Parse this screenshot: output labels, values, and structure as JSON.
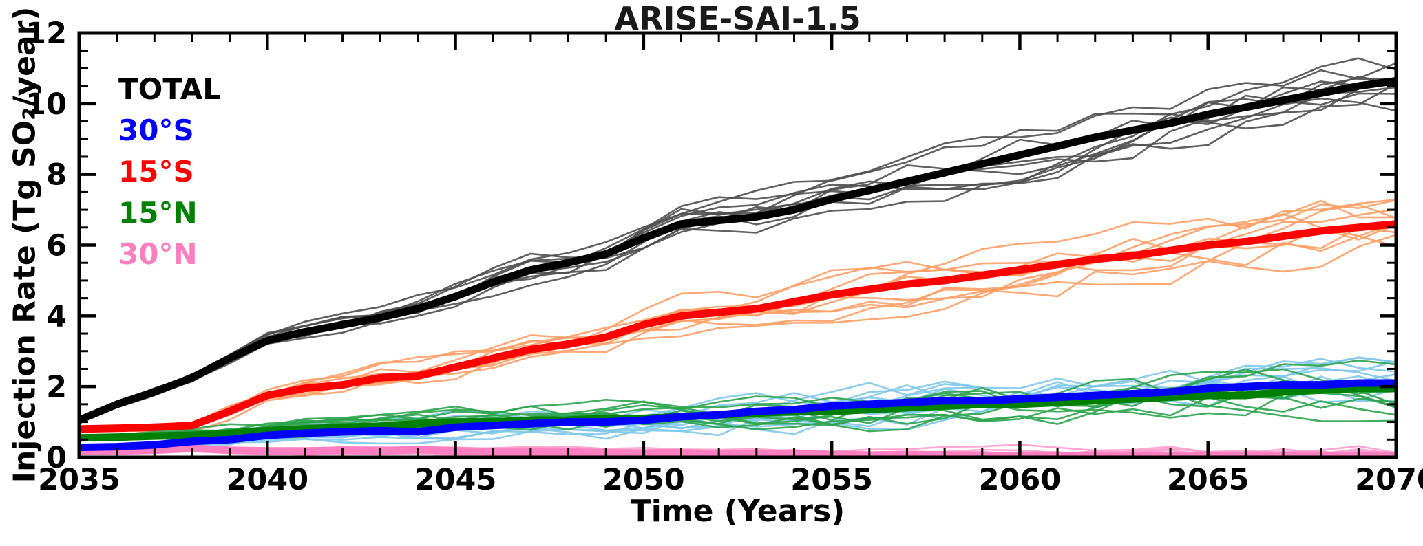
{
  "chart_data": {
    "type": "line",
    "title": "ARISE-SAI-1.5",
    "xlabel": "Time (Years)",
    "ylabel": "Injection Rate (Tg SO₂/year)",
    "xlim": [
      2035,
      2070
    ],
    "ylim": [
      0,
      12
    ],
    "x_ticks": [
      2035,
      2040,
      2045,
      2050,
      2055,
      2060,
      2065,
      2070
    ],
    "y_ticks": [
      0,
      2,
      4,
      6,
      8,
      10,
      12
    ],
    "grid": false,
    "legend_position": "upper-left-inside",
    "x": [
      2035,
      2036,
      2037,
      2038,
      2039,
      2040,
      2041,
      2042,
      2043,
      2044,
      2045,
      2046,
      2047,
      2048,
      2049,
      2050,
      2051,
      2052,
      2053,
      2054,
      2055,
      2056,
      2057,
      2058,
      2059,
      2060,
      2061,
      2062,
      2063,
      2064,
      2065,
      2066,
      2067,
      2068,
      2069,
      2070
    ],
    "ensemble": {
      "members": 10,
      "seed": 42,
      "note": "thin lines are individual ensemble members around thick ensemble-mean lines"
    },
    "series": [
      {
        "name": "TOTAL",
        "color": "#000000",
        "member_color": "#4F4F4F",
        "member_noise": 0.95,
        "values": [
          1.05,
          1.5,
          1.85,
          2.25,
          2.8,
          3.3,
          3.55,
          3.75,
          3.95,
          4.2,
          4.55,
          4.95,
          5.3,
          5.5,
          5.75,
          6.2,
          6.6,
          6.7,
          6.8,
          7.0,
          7.3,
          7.55,
          7.8,
          8.05,
          8.3,
          8.55,
          8.8,
          9.05,
          9.25,
          9.45,
          9.7,
          9.9,
          10.1,
          10.3,
          10.5,
          10.65
        ]
      },
      {
        "name": "30°S",
        "color": "#0000FF",
        "member_color": "#7EC8E8",
        "member_noise": 0.85,
        "values": [
          0.28,
          0.3,
          0.35,
          0.45,
          0.5,
          0.62,
          0.68,
          0.72,
          0.75,
          0.72,
          0.85,
          0.9,
          0.95,
          1.0,
          1.0,
          1.05,
          1.15,
          1.2,
          1.3,
          1.35,
          1.45,
          1.5,
          1.55,
          1.6,
          1.6,
          1.65,
          1.7,
          1.75,
          1.8,
          1.85,
          1.95,
          2.0,
          2.05,
          2.05,
          2.1,
          2.1
        ]
      },
      {
        "name": "15°S",
        "color": "#FF0000",
        "member_color": "#FF9E66",
        "member_noise": 0.9,
        "values": [
          0.8,
          0.82,
          0.85,
          0.9,
          1.3,
          1.75,
          1.95,
          2.05,
          2.25,
          2.3,
          2.55,
          2.8,
          3.05,
          3.2,
          3.4,
          3.75,
          4.0,
          4.1,
          4.2,
          4.4,
          4.6,
          4.75,
          4.9,
          5.0,
          5.15,
          5.3,
          5.45,
          5.6,
          5.7,
          5.85,
          6.0,
          6.1,
          6.25,
          6.4,
          6.5,
          6.6
        ]
      },
      {
        "name": "15°N",
        "color": "#008000",
        "member_color": "#2EA44F",
        "member_noise": 0.85,
        "values": [
          0.55,
          0.57,
          0.6,
          0.62,
          0.68,
          0.75,
          0.8,
          0.85,
          0.88,
          0.95,
          1.0,
          1.0,
          1.05,
          1.05,
          1.1,
          1.1,
          1.15,
          1.2,
          1.25,
          1.3,
          1.3,
          1.35,
          1.4,
          1.45,
          1.5,
          1.5,
          1.55,
          1.6,
          1.65,
          1.7,
          1.75,
          1.75,
          1.85,
          1.9,
          1.95,
          1.95
        ]
      },
      {
        "name": "30°N",
        "color": "#FF7EC0",
        "member_color": "#FF9CCE",
        "member_noise": 0.3,
        "values": [
          0.18,
          0.18,
          0.2,
          0.25,
          0.2,
          0.18,
          0.18,
          0.2,
          0.18,
          0.22,
          0.18,
          0.15,
          0.15,
          0.15,
          0.12,
          0.12,
          0.12,
          0.1,
          0.1,
          0.1,
          0.08,
          0.06,
          0.08,
          0.06,
          0.05,
          0.05,
          0.05,
          0.05,
          0.05,
          0.05,
          0.05,
          0.05,
          0.05,
          0.05,
          0.05,
          0.05
        ]
      }
    ]
  }
}
